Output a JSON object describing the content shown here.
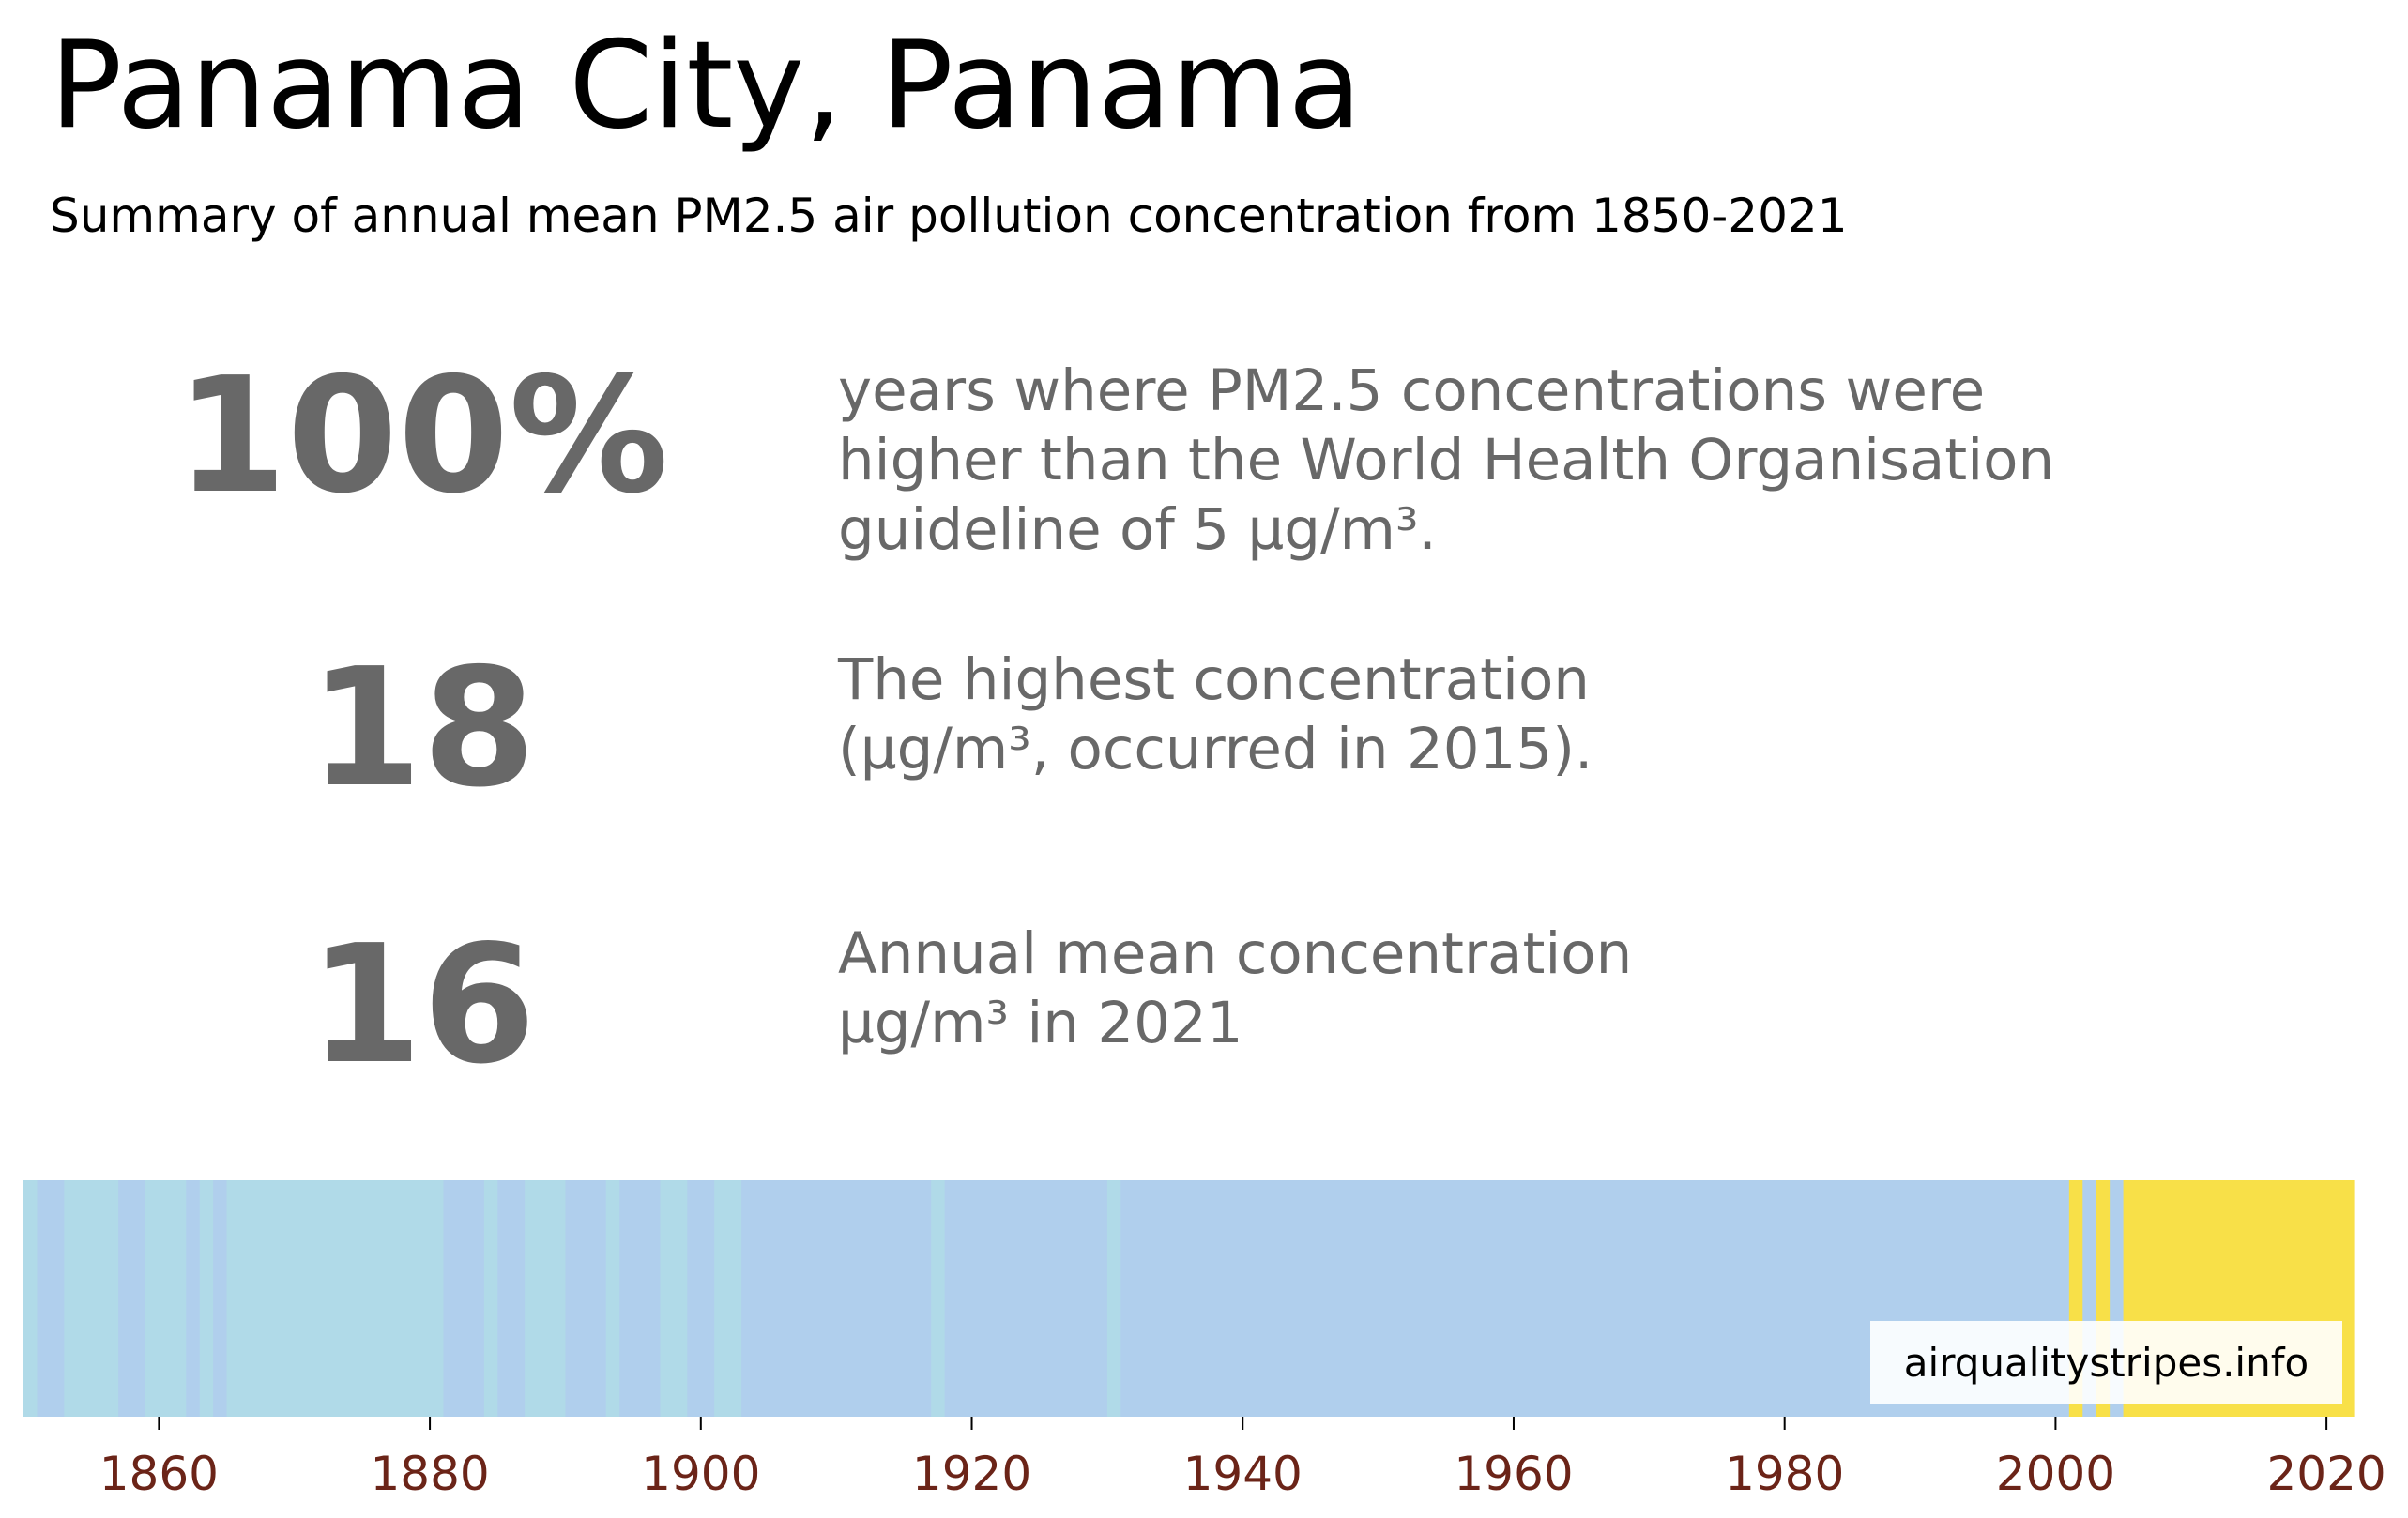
{
  "header": {
    "title": "Panama City, Panama",
    "subtitle": "Summary of annual mean PM2.5 air pollution concentration from 1850-2021"
  },
  "stats": [
    {
      "value": "100%",
      "lines": [
        "years where PM2.5 concentrations were",
        "higher than the World Health Organisation",
        "guideline of 5 µg/m³."
      ]
    },
    {
      "value": "18",
      "lines": [
        "The highest concentration",
        "(µg/m³, occurred in 2015)."
      ]
    },
    {
      "value": "16",
      "lines": [
        "Annual mean concentration",
        "µg/m³ in 2021"
      ]
    }
  ],
  "watermark": "airqualitystripes.info",
  "colors": {
    "stat_gray": "#686868",
    "tick_label": "#6b2418",
    "level_light_blue": "#b0dae8",
    "level_blue": "#b0cfed",
    "level_yellow": "#f8e048"
  },
  "chart_data": {
    "type": "heatmap",
    "x_unit": "year",
    "xlim": [
      1850,
      2022
    ],
    "x_ticks": [
      1860,
      1880,
      1900,
      1920,
      1940,
      1960,
      1980,
      2000,
      2020
    ],
    "color_scale": "each stripe is one year, colored by its annual mean PM2.5 band",
    "stripes": [
      {
        "from": 1850,
        "to": 1851,
        "color": "#b0dae8"
      },
      {
        "from": 1851,
        "to": 1853,
        "color": "#b0cfed"
      },
      {
        "from": 1853,
        "to": 1857,
        "color": "#b0dae8"
      },
      {
        "from": 1857,
        "to": 1859,
        "color": "#b0cfed"
      },
      {
        "from": 1859,
        "to": 1862,
        "color": "#b0dae8"
      },
      {
        "from": 1862,
        "to": 1863,
        "color": "#b0cfed"
      },
      {
        "from": 1863,
        "to": 1864,
        "color": "#b0dae8"
      },
      {
        "from": 1864,
        "to": 1865,
        "color": "#b0cfed"
      },
      {
        "from": 1865,
        "to": 1881,
        "color": "#b0dae8"
      },
      {
        "from": 1881,
        "to": 1884,
        "color": "#b0cfed"
      },
      {
        "from": 1884,
        "to": 1885,
        "color": "#b0dae8"
      },
      {
        "from": 1885,
        "to": 1887,
        "color": "#b0cfed"
      },
      {
        "from": 1887,
        "to": 1890,
        "color": "#b0dae8"
      },
      {
        "from": 1890,
        "to": 1893,
        "color": "#b0cfed"
      },
      {
        "from": 1893,
        "to": 1894,
        "color": "#b0dae8"
      },
      {
        "from": 1894,
        "to": 1897,
        "color": "#b0cfed"
      },
      {
        "from": 1897,
        "to": 1899,
        "color": "#b0dae8"
      },
      {
        "from": 1899,
        "to": 1901,
        "color": "#b0cfed"
      },
      {
        "from": 1901,
        "to": 1903,
        "color": "#b0dae8"
      },
      {
        "from": 1903,
        "to": 1917,
        "color": "#b0cfed"
      },
      {
        "from": 1917,
        "to": 1918,
        "color": "#b0dae8"
      },
      {
        "from": 1918,
        "to": 1930,
        "color": "#b0cfed"
      },
      {
        "from": 1930,
        "to": 1931,
        "color": "#b0dae8"
      },
      {
        "from": 1931,
        "to": 2001,
        "color": "#b0cfed"
      },
      {
        "from": 2001,
        "to": 2002,
        "color": "#f8e048"
      },
      {
        "from": 2002,
        "to": 2003,
        "color": "#b0cfed"
      },
      {
        "from": 2003,
        "to": 2004,
        "color": "#f8e048"
      },
      {
        "from": 2004,
        "to": 2005,
        "color": "#b0cfed"
      },
      {
        "from": 2005,
        "to": 2022,
        "color": "#f8e048"
      }
    ]
  }
}
